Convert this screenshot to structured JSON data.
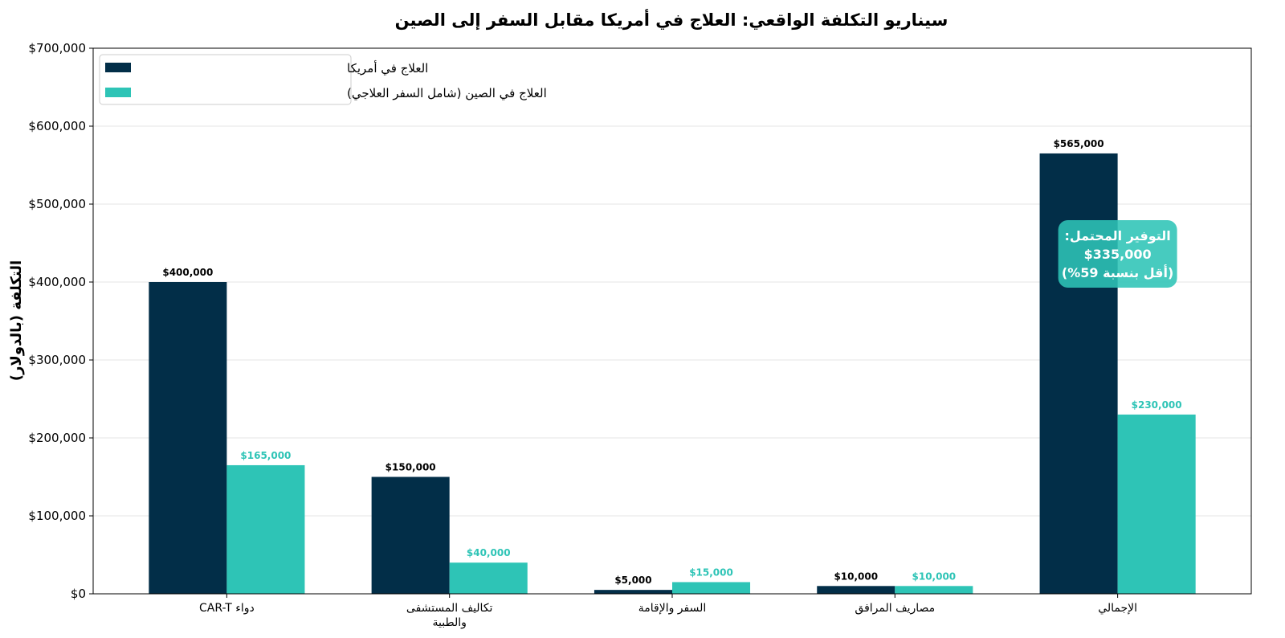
{
  "chart_data": {
    "type": "bar",
    "title": "سيناريو التكلفة الواقعي: العلاج في أمريكا مقابل السفر إلى الصين",
    "xlabel": "",
    "ylabel": "التكلفة (بالدولار)",
    "ylim": [
      0,
      700000
    ],
    "yticks": [
      0,
      100000,
      200000,
      300000,
      400000,
      500000,
      600000,
      700000
    ],
    "ytick_labels": [
      "$0",
      "$100,000",
      "$200,000",
      "$300,000",
      "$400,000",
      "$500,000",
      "$600,000",
      "$700,000"
    ],
    "categories": [
      [
        "دواء CAR-T"
      ],
      [
        "تكاليف المستشفى",
        "والطبية"
      ],
      [
        "السفر والإقامة"
      ],
      [
        "مصاريف المرافق"
      ],
      [
        "الإجمالي"
      ]
    ],
    "series": [
      {
        "name": "العلاج في أمريكا",
        "color": "#022e48",
        "label_color": "#000000",
        "values": [
          400000,
          150000,
          5000,
          10000,
          565000
        ],
        "labels": [
          "$400,000",
          "$150,000",
          "$5,000",
          "$10,000",
          "$565,000"
        ]
      },
      {
        "name": "العلاج في الصين (شامل السفر العلاجي)",
        "color": "#2ec4b6",
        "label_color": "#2ec4b6",
        "values": [
          165000,
          40000,
          15000,
          10000,
          230000
        ],
        "labels": [
          "$165,000",
          "$40,000",
          "$15,000",
          "$10,000",
          "$230,000"
        ]
      }
    ],
    "grid": true,
    "legend_position": "top-left",
    "annotation": {
      "lines": [
        "التوفير المحتمل:",
        "$335,000",
        "(أقل بنسبة 59%)"
      ],
      "background": "#2ec4b6"
    }
  }
}
